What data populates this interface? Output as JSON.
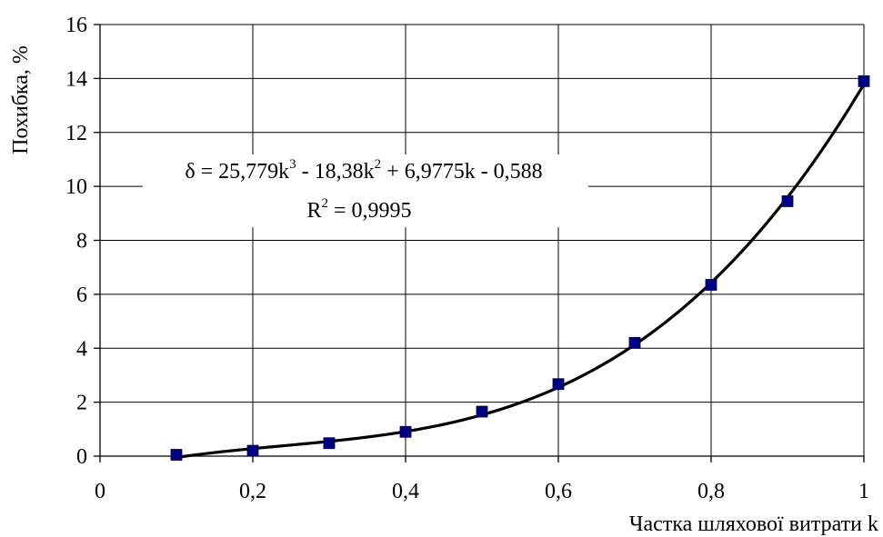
{
  "chart_data": {
    "type": "scatter",
    "xlabel": "Частка шляхової витрати k",
    "ylabel": "Похибка, %",
    "xlim": [
      0,
      1
    ],
    "ylim": [
      0,
      16
    ],
    "x_ticks": [
      0,
      0.2,
      0.4,
      0.6,
      0.8,
      1
    ],
    "x_tick_labels": [
      "0",
      "0,2",
      "0,4",
      "0,6",
      "0,8",
      "1"
    ],
    "y_ticks": [
      0,
      2,
      4,
      6,
      8,
      10,
      12,
      14,
      16
    ],
    "y_tick_labels": [
      "0",
      "2",
      "4",
      "6",
      "8",
      "10",
      "12",
      "14",
      "16"
    ],
    "grid": true,
    "legend": "none",
    "series": [
      {
        "marker": "square",
        "color": "#000080",
        "x": [
          0.1,
          0.2,
          0.3,
          0.4,
          0.5,
          0.6,
          0.7,
          0.8,
          0.9,
          1.0
        ],
        "y": [
          0.05,
          0.2,
          0.48,
          0.9,
          1.65,
          2.67,
          4.2,
          6.35,
          9.45,
          13.9
        ]
      }
    ],
    "trendline": {
      "type": "polynomial",
      "coefficients": [
        25.779,
        -18.38,
        6.9775,
        -0.588
      ],
      "x_range": [
        0.1,
        1.0
      ],
      "color": "#000000"
    },
    "annotation": {
      "eq_a": "δ = 25,779k",
      "eq_sup1": "3",
      "eq_b": " - 18,38k",
      "eq_sup2": "2",
      "eq_c": " + 6,9775k - 0,588",
      "r2_a": "R",
      "r2_sup": "2",
      "r2_b": " = 0,9995"
    }
  }
}
